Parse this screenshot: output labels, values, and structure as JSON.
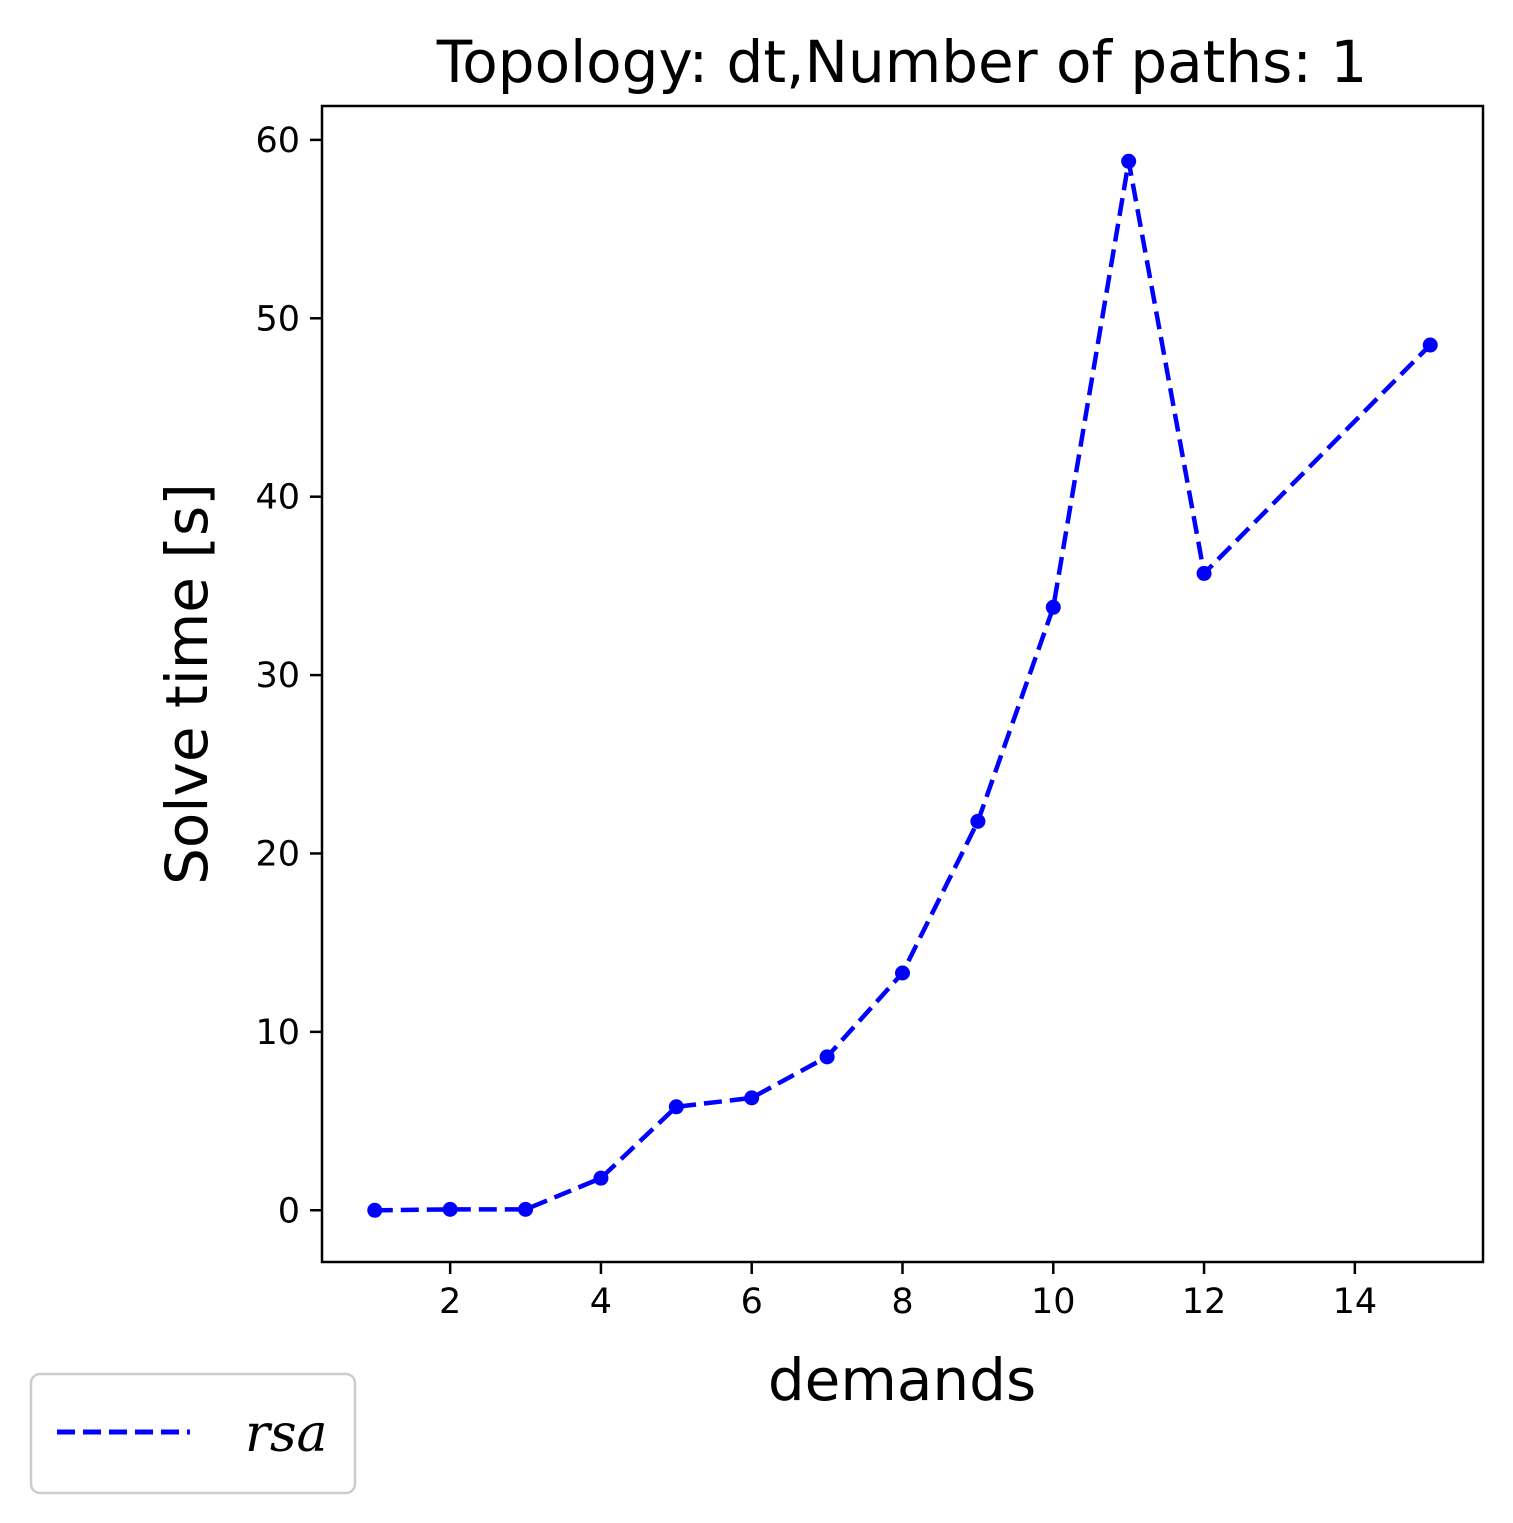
{
  "chart_data": {
    "type": "line",
    "title": "Topology: dt,Number of paths: 1",
    "xlabel": "demands",
    "ylabel": "Solve time [s]",
    "xlim": [
      0.3,
      15.7
    ],
    "ylim": [
      -2.9,
      61.9
    ],
    "xticks": [
      2,
      4,
      6,
      8,
      10,
      12,
      14
    ],
    "yticks": [
      0,
      10,
      20,
      30,
      40,
      50,
      60
    ],
    "grid": false,
    "legend_position": "bottom-left",
    "series": [
      {
        "name": "rsa",
        "color": "#0000ff",
        "line_style": "dashed",
        "marker": "circle",
        "x": [
          1,
          2,
          3,
          4,
          5,
          6,
          7,
          8,
          9,
          10,
          11,
          12,
          15
        ],
        "y": [
          0.0,
          0.05,
          0.05,
          1.8,
          5.8,
          6.3,
          8.6,
          13.3,
          21.8,
          33.8,
          58.8,
          35.7,
          48.5
        ]
      }
    ]
  }
}
